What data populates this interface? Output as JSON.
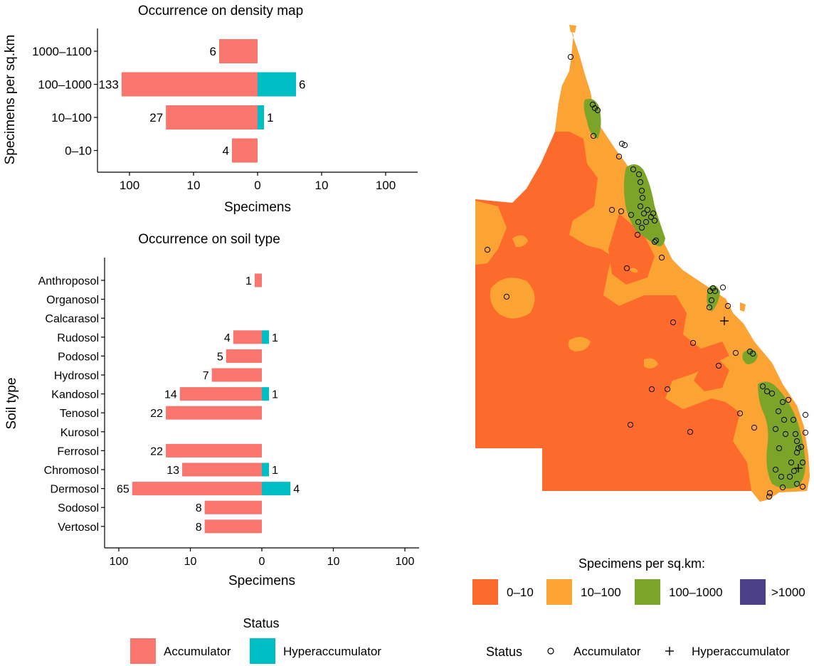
{
  "colors": {
    "accumulator": "#F8766D",
    "hyperaccumulator": "#00BFC4",
    "density_0_10": "#FC6A2C",
    "density_10_100": "#FBA433",
    "density_100_1000": "#7BA428",
    "density_gt_1000": "#4B3F87"
  },
  "chart_data": [
    {
      "type": "bar",
      "title": "Occurrence on density map",
      "xlabel": "Specimens",
      "ylabel": "Specimens per sq.km",
      "x_scale": "diverging pseudo-log (0 at center)",
      "x_tick_labels": [
        "100",
        "10",
        "0",
        "10",
        "100"
      ],
      "categories": [
        "1000–1100",
        "100–1000",
        "10–100",
        "0–10"
      ],
      "series": [
        {
          "name": "Accumulator",
          "direction": "left",
          "values": [
            6,
            133,
            27,
            4
          ]
        },
        {
          "name": "Hyperaccumulator",
          "direction": "right",
          "values": [
            null,
            6,
            1,
            null
          ]
        }
      ]
    },
    {
      "type": "bar",
      "title": "Occurrence on soil type",
      "xlabel": "Specimens",
      "ylabel": "Soil type",
      "x_scale": "diverging pseudo-log (0 at center)",
      "x_tick_labels": [
        "100",
        "10",
        "0",
        "10",
        "100"
      ],
      "categories": [
        "Anthroposol",
        "Organosol",
        "Calcarasol",
        "Rudosol",
        "Podosol",
        "Hydrosol",
        "Kandosol",
        "Tenosol",
        "Kurosol",
        "Ferrosol",
        "Chromosol",
        "Dermosol",
        "Sodosol",
        "Vertosol"
      ],
      "series": [
        {
          "name": "Accumulator",
          "direction": "left",
          "values": [
            1,
            null,
            null,
            4,
            5,
            7,
            14,
            22,
            null,
            22,
            13,
            65,
            8,
            8
          ]
        },
        {
          "name": "Hyperaccumulator",
          "direction": "right",
          "values": [
            null,
            null,
            null,
            1,
            null,
            null,
            1,
            null,
            null,
            null,
            1,
            4,
            null,
            null
          ]
        }
      ]
    }
  ],
  "status_legend": {
    "title": "Status",
    "items": [
      {
        "label": "Accumulator",
        "color": "#F8766D"
      },
      {
        "label": "Hyperaccumulator",
        "color": "#00BFC4"
      }
    ]
  },
  "map": {
    "density_legend": {
      "title": "Specimens per sq.km:",
      "items": [
        {
          "label": "0–10",
          "color": "#FC6A2C"
        },
        {
          "label": "10–100",
          "color": "#FBA433"
        },
        {
          "label": "100–1000",
          "color": "#7BA428"
        },
        {
          "label": ">1000",
          "color": "#4B3F87"
        }
      ]
    },
    "status_legend": {
      "title": "Status",
      "items": [
        {
          "label": "Accumulator",
          "symbol": "circle"
        },
        {
          "label": "Hyperaccumulator",
          "symbol": "plus"
        }
      ]
    }
  }
}
